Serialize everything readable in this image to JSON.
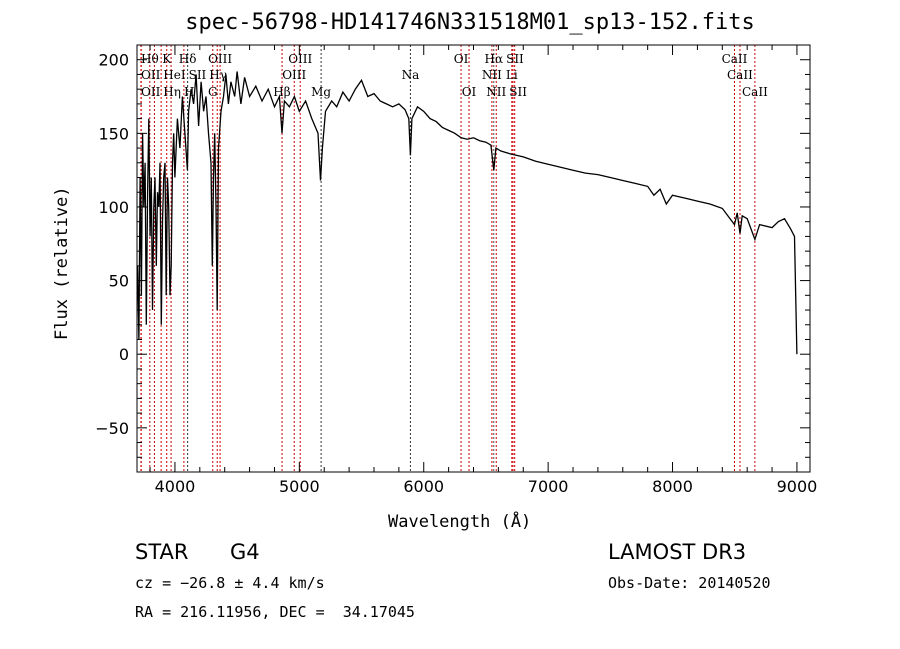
{
  "chart_data": {
    "type": "line",
    "title": "spec-56798-HD141746N331518M01_sp13-152.fits",
    "xlabel": "Wavelength (Å)",
    "ylabel": "Flux (relative)",
    "xlim": [
      3695,
      9105
    ],
    "ylim": [
      -80,
      210
    ],
    "xticks": [
      4000,
      5000,
      6000,
      7000,
      8000,
      9000
    ],
    "yticks": [
      -50,
      0,
      50,
      100,
      150,
      200
    ],
    "series": [
      {
        "name": "spectrum",
        "points": [
          [
            3700,
            60
          ],
          [
            3710,
            10
          ],
          [
            3720,
            120
          ],
          [
            3730,
            40
          ],
          [
            3740,
            150
          ],
          [
            3750,
            100
          ],
          [
            3760,
            130
          ],
          [
            3770,
            20
          ],
          [
            3780,
            110
          ],
          [
            3790,
            160
          ],
          [
            3800,
            80
          ],
          [
            3810,
            120
          ],
          [
            3820,
            30
          ],
          [
            3830,
            100
          ],
          [
            3840,
            120
          ],
          [
            3850,
            60
          ],
          [
            3860,
            110
          ],
          [
            3870,
            100
          ],
          [
            3880,
            130
          ],
          [
            3890,
            20
          ],
          [
            3900,
            90
          ],
          [
            3910,
            120
          ],
          [
            3920,
            130
          ],
          [
            3930,
            40
          ],
          [
            3940,
            120
          ],
          [
            3950,
            100
          ],
          [
            3960,
            40
          ],
          [
            3970,
            60
          ],
          [
            3980,
            130
          ],
          [
            3990,
            150
          ],
          [
            4000,
            120
          ],
          [
            4020,
            160
          ],
          [
            4040,
            140
          ],
          [
            4060,
            175
          ],
          [
            4080,
            150
          ],
          [
            4100,
            125
          ],
          [
            4110,
            165
          ],
          [
            4130,
            180
          ],
          [
            4150,
            170
          ],
          [
            4170,
            190
          ],
          [
            4190,
            155
          ],
          [
            4210,
            185
          ],
          [
            4230,
            165
          ],
          [
            4250,
            175
          ],
          [
            4270,
            150
          ],
          [
            4290,
            130
          ],
          [
            4300,
            60
          ],
          [
            4310,
            120
          ],
          [
            4320,
            150
          ],
          [
            4330,
            100
          ],
          [
            4340,
            30
          ],
          [
            4350,
            140
          ],
          [
            4370,
            165
          ],
          [
            4390,
            175
          ],
          [
            4410,
            190
          ],
          [
            4430,
            170
          ],
          [
            4450,
            185
          ],
          [
            4480,
            175
          ],
          [
            4500,
            192
          ],
          [
            4530,
            170
          ],
          [
            4560,
            188
          ],
          [
            4600,
            175
          ],
          [
            4650,
            182
          ],
          [
            4700,
            172
          ],
          [
            4750,
            180
          ],
          [
            4800,
            168
          ],
          [
            4840,
            175
          ],
          [
            4861,
            150
          ],
          [
            4880,
            172
          ],
          [
            4920,
            168
          ],
          [
            4960,
            175
          ],
          [
            5000,
            165
          ],
          [
            5050,
            172
          ],
          [
            5100,
            160
          ],
          [
            5150,
            150
          ],
          [
            5170,
            118
          ],
          [
            5185,
            140
          ],
          [
            5210,
            165
          ],
          [
            5260,
            172
          ],
          [
            5300,
            168
          ],
          [
            5350,
            178
          ],
          [
            5400,
            172
          ],
          [
            5450,
            180
          ],
          [
            5500,
            186
          ],
          [
            5550,
            175
          ],
          [
            5600,
            177
          ],
          [
            5650,
            172
          ],
          [
            5700,
            170
          ],
          [
            5750,
            168
          ],
          [
            5800,
            170
          ],
          [
            5850,
            166
          ],
          [
            5880,
            160
          ],
          [
            5893,
            135
          ],
          [
            5905,
            160
          ],
          [
            5950,
            168
          ],
          [
            6000,
            165
          ],
          [
            6050,
            160
          ],
          [
            6100,
            158
          ],
          [
            6150,
            154
          ],
          [
            6200,
            152
          ],
          [
            6250,
            150
          ],
          [
            6300,
            147
          ],
          [
            6350,
            146
          ],
          [
            6400,
            147
          ],
          [
            6450,
            145
          ],
          [
            6500,
            144
          ],
          [
            6540,
            142
          ],
          [
            6563,
            125
          ],
          [
            6580,
            140
          ],
          [
            6620,
            138
          ],
          [
            6700,
            136
          ],
          [
            6800,
            134
          ],
          [
            6900,
            131
          ],
          [
            7000,
            129
          ],
          [
            7100,
            127
          ],
          [
            7200,
            125
          ],
          [
            7300,
            123
          ],
          [
            7400,
            122
          ],
          [
            7500,
            120
          ],
          [
            7600,
            118
          ],
          [
            7700,
            116
          ],
          [
            7800,
            114
          ],
          [
            7850,
            108
          ],
          [
            7900,
            112
          ],
          [
            7950,
            102
          ],
          [
            8000,
            108
          ],
          [
            8100,
            106
          ],
          [
            8200,
            104
          ],
          [
            8300,
            102
          ],
          [
            8400,
            99
          ],
          [
            8498,
            88
          ],
          [
            8520,
            96
          ],
          [
            8542,
            82
          ],
          [
            8560,
            94
          ],
          [
            8600,
            92
          ],
          [
            8662,
            78
          ],
          [
            8700,
            88
          ],
          [
            8800,
            86
          ],
          [
            8850,
            90
          ],
          [
            8900,
            92
          ],
          [
            8950,
            85
          ],
          [
            8980,
            80
          ],
          [
            8990,
            40
          ],
          [
            9000,
            0
          ]
        ]
      }
    ],
    "lines": [
      {
        "label": "Hθ",
        "wave": 3798,
        "row": 1,
        "color": "#cc0000"
      },
      {
        "label": "K",
        "wave": 3934,
        "row": 1,
        "color": "#cc0000"
      },
      {
        "label": "Hδ",
        "wave": 4102,
        "row": 1,
        "color": "#333333"
      },
      {
        "label": "OIII",
        "wave": 4363,
        "row": 1,
        "color": "#cc0000"
      },
      {
        "label": "OIII",
        "wave": 5007,
        "row": 1,
        "color": "#cc0000"
      },
      {
        "label": "OI",
        "wave": 6300,
        "row": 1,
        "color": "#cc0000"
      },
      {
        "label": "Hα",
        "wave": 6563,
        "row": 1,
        "color": "#555555"
      },
      {
        "label": "SII",
        "wave": 6717,
        "row": 1,
        "color": "#cc0000"
      },
      {
        "label": "CaII",
        "wave": 8498,
        "row": 1,
        "color": "#cc0000"
      },
      {
        "label": "OII",
        "wave": 3727,
        "row": 2,
        "color": "#cc0000"
      },
      {
        "label": "HeI",
        "wave": 3889,
        "row": 2,
        "color": "#cc0000"
      },
      {
        "label": "SII",
        "wave": 4072,
        "row": 2,
        "color": "#cc0000"
      },
      {
        "label": "Hγ",
        "wave": 4340,
        "row": 2,
        "color": "#cc0000"
      },
      {
        "label": "OIII",
        "wave": 4959,
        "row": 2,
        "color": "#cc0000"
      },
      {
        "label": "Na",
        "wave": 5893,
        "row": 2,
        "color": "#333333"
      },
      {
        "label": "NII",
        "wave": 6548,
        "row": 2,
        "color": "#cc0000"
      },
      {
        "label": "Li",
        "wave": 6708,
        "row": 2,
        "color": "#cc0000"
      },
      {
        "label": "CaII",
        "wave": 8542,
        "row": 2,
        "color": "#cc0000"
      },
      {
        "label": "OII",
        "wave": 3729,
        "row": 3,
        "color": "#cc0000"
      },
      {
        "label": "Hη",
        "wave": 3835,
        "row": 3,
        "color": "#cc0000"
      },
      {
        "label": "H",
        "wave": 3969,
        "row": 3,
        "color": "#cc0000"
      },
      {
        "label": "G",
        "wave": 4304,
        "row": 3,
        "color": "#cc0000"
      },
      {
        "label": "Hβ",
        "wave": 4861,
        "row": 3,
        "color": "#cc0000"
      },
      {
        "label": "Mg",
        "wave": 5175,
        "row": 3,
        "color": "#333333"
      },
      {
        "label": "OI",
        "wave": 6364,
        "row": 3,
        "color": "#cc0000"
      },
      {
        "label": "NII",
        "wave": 6583,
        "row": 3,
        "color": "#cc0000"
      },
      {
        "label": "SII",
        "wave": 6731,
        "row": 3,
        "color": "#cc0000"
      },
      {
        "label": "CaII",
        "wave": 8662,
        "row": 3,
        "color": "#cc0000"
      }
    ]
  },
  "info": {
    "class": "STAR",
    "subclass": "G4",
    "survey": "LAMOST DR3",
    "cz": "cz = −26.8 ± 4.4 km/s",
    "obs_date": "Obs-Date: 20140520",
    "coords": "RA = 216.11956, DEC =  34.17045"
  }
}
